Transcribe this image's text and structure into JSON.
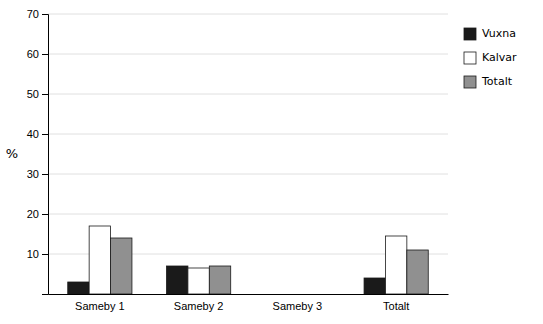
{
  "chart_data": {
    "type": "bar",
    "categories": [
      "Sameby 1",
      "Sameby 2",
      "Sameby 3",
      "Totalt"
    ],
    "series": [
      {
        "name": "Vuxna",
        "color": "#1a1a1a",
        "values": [
          3,
          7,
          0,
          4
        ]
      },
      {
        "name": "Kalvar",
        "color": "#ffffff",
        "values": [
          17,
          6.5,
          0,
          14.5
        ]
      },
      {
        "name": "Totalt",
        "color": "#909090",
        "values": [
          14,
          7,
          0,
          11
        ]
      }
    ],
    "ylabel": "%",
    "ylim": [
      0,
      70
    ],
    "yticks": [
      10,
      20,
      30,
      40,
      50,
      60,
      70
    ],
    "grid": true,
    "legend": "right"
  }
}
